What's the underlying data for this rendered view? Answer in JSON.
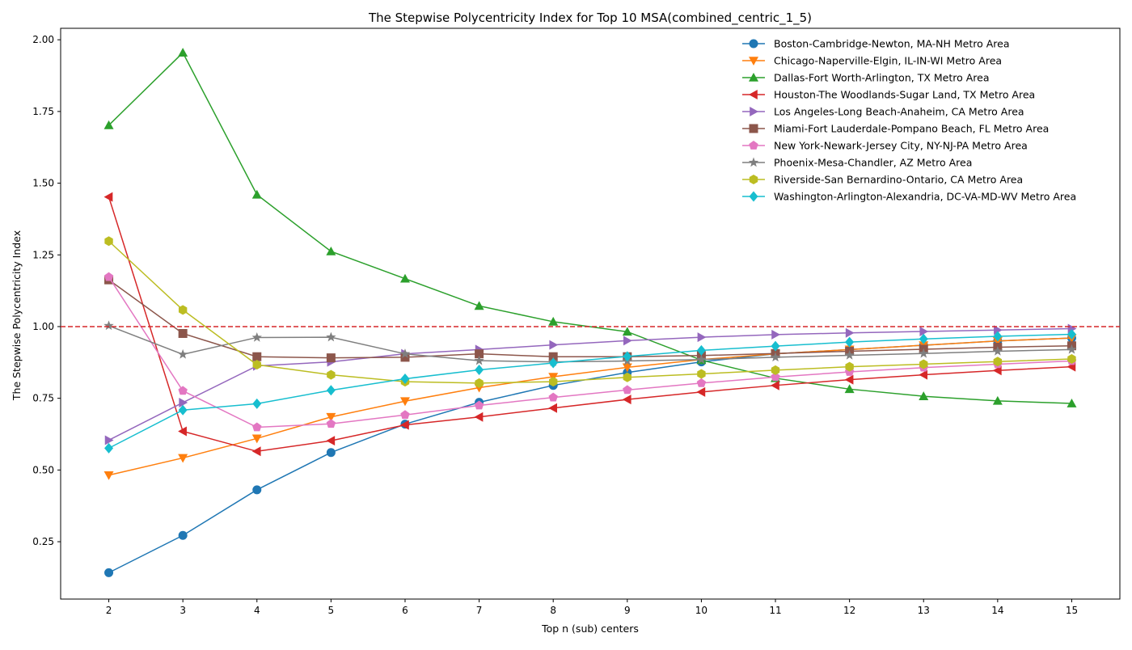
{
  "chart_data": {
    "type": "line",
    "title": "The Stepwise Polycentricity Index for Top 10 MSA(combined_centric_1_5)",
    "xlabel": "Top n (sub) centers",
    "ylabel": "The Stepwise Polycentricity Index",
    "x": [
      2,
      3,
      4,
      5,
      6,
      7,
      8,
      9,
      10,
      11,
      12,
      13,
      14,
      15
    ],
    "xlim": [
      1.35,
      15.65
    ],
    "ylim": [
      0.05,
      2.04
    ],
    "yticks": [
      0.25,
      0.5,
      0.75,
      1.0,
      1.25,
      1.5,
      1.75,
      2.0
    ],
    "ytick_labels": [
      "0.25",
      "0.50",
      "0.75",
      "1.00",
      "1.25",
      "1.50",
      "1.75",
      "2.00"
    ],
    "xtick_labels": [
      "2",
      "3",
      "4",
      "5",
      "6",
      "7",
      "8",
      "9",
      "10",
      "11",
      "12",
      "13",
      "14",
      "15"
    ],
    "grid": false,
    "legend_position": "top-right",
    "reference_line": {
      "y": 1.0,
      "color": "#d62728",
      "style": "dashed"
    },
    "series": [
      {
        "name": "Boston-Cambridge-Newton, MA-NH Metro Area",
        "color": "#1f77b4",
        "marker": "circle",
        "values": [
          0.142,
          0.272,
          0.431,
          0.561,
          0.66,
          0.736,
          0.795,
          0.84,
          0.877,
          0.905,
          0.92,
          0.935,
          0.95,
          0.96
        ]
      },
      {
        "name": "Chicago-Naperville-Elgin, IL-IN-WI Metro Area",
        "color": "#ff7f0e",
        "marker": "triangle-down",
        "values": [
          0.482,
          0.542,
          0.61,
          0.685,
          0.74,
          0.787,
          0.825,
          0.858,
          0.885,
          0.905,
          0.92,
          0.935,
          0.95,
          0.96
        ]
      },
      {
        "name": "Dallas-Fort Worth-Arlington, TX Metro Area",
        "color": "#2ca02c",
        "marker": "triangle-up",
        "values": [
          1.702,
          1.955,
          1.46,
          1.262,
          1.167,
          1.072,
          1.017,
          0.982,
          0.883,
          0.82,
          0.782,
          0.757,
          0.741,
          0.732
        ]
      },
      {
        "name": "Houston-The Woodlands-Sugar Land, TX Metro Area",
        "color": "#d62728",
        "marker": "triangle-left",
        "values": [
          1.452,
          0.635,
          0.565,
          0.602,
          0.657,
          0.685,
          0.716,
          0.746,
          0.772,
          0.795,
          0.815,
          0.832,
          0.847,
          0.86
        ]
      },
      {
        "name": "Los Angeles-Long Beach-Anaheim, CA Metro Area",
        "color": "#9467bd",
        "marker": "triangle-right",
        "values": [
          0.604,
          0.735,
          0.863,
          0.877,
          0.905,
          0.92,
          0.936,
          0.951,
          0.963,
          0.972,
          0.978,
          0.983,
          0.988,
          0.993
        ]
      },
      {
        "name": "Miami-Fort Lauderdale-Pompano Beach, FL Metro Area",
        "color": "#8c564b",
        "marker": "square",
        "values": [
          1.163,
          0.976,
          0.895,
          0.891,
          0.893,
          0.905,
          0.895,
          0.895,
          0.899,
          0.906,
          0.914,
          0.921,
          0.928,
          0.933
        ]
      },
      {
        "name": "New York-Newark-Jersey City, NY-NJ-PA Metro Area",
        "color": "#e377c2",
        "marker": "pentagon",
        "values": [
          1.173,
          0.776,
          0.649,
          0.661,
          0.692,
          0.725,
          0.753,
          0.779,
          0.803,
          0.824,
          0.842,
          0.857,
          0.869,
          0.88
        ]
      },
      {
        "name": "Phoenix-Mesa-Chandler, AZ Metro Area",
        "color": "#7f7f7f",
        "marker": "star",
        "values": [
          1.003,
          0.903,
          0.962,
          0.963,
          0.905,
          0.881,
          0.877,
          0.88,
          0.885,
          0.893,
          0.9,
          0.906,
          0.914,
          0.92
        ]
      },
      {
        "name": "Riverside-San Bernardino-Ontario, CA Metro Area",
        "color": "#bcbd22",
        "marker": "hexagon",
        "values": [
          1.298,
          1.058,
          0.867,
          0.832,
          0.808,
          0.803,
          0.808,
          0.823,
          0.835,
          0.848,
          0.86,
          0.869,
          0.878,
          0.887
        ]
      },
      {
        "name": "Washington-Arlington-Alexandria, DC-VA-MD-WV Metro Area",
        "color": "#17becf",
        "marker": "diamond",
        "values": [
          0.576,
          0.709,
          0.731,
          0.778,
          0.818,
          0.849,
          0.873,
          0.896,
          0.917,
          0.932,
          0.946,
          0.957,
          0.966,
          0.973
        ]
      }
    ]
  }
}
